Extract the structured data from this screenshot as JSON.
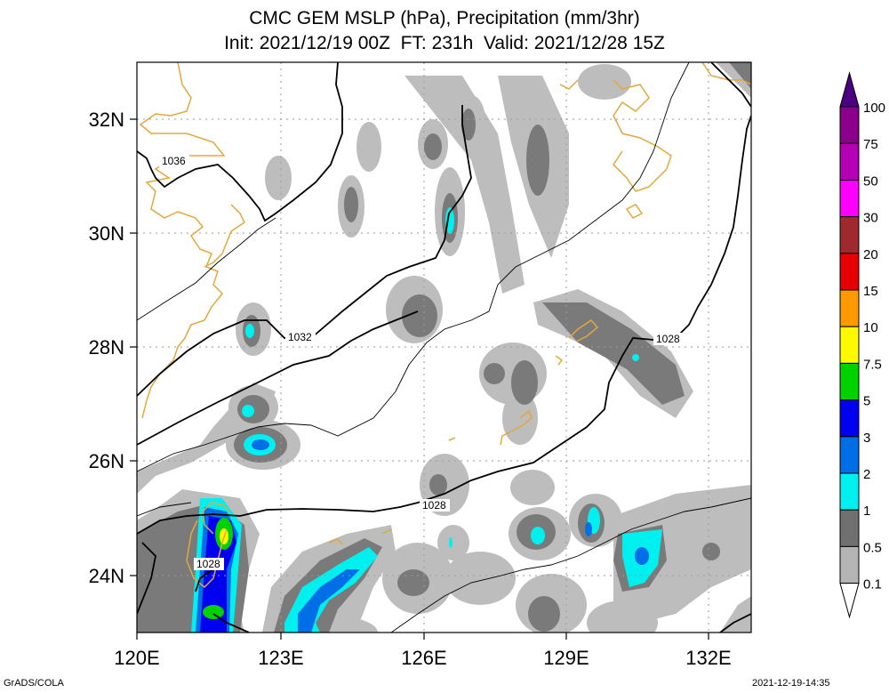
{
  "title": {
    "line1": "CMC GEM MSLP (hPa), Precipitation (mm/3hr)",
    "line2": "Init: 2021/12/19 00Z  FT: 231h  Valid: 2021/12/28 15Z"
  },
  "axes": {
    "lon_labels": [
      "120E",
      "123E",
      "126E",
      "129E",
      "132E"
    ],
    "lat_labels": [
      "32N",
      "30N",
      "28N",
      "26N",
      "24N"
    ]
  },
  "isobar_labels": [
    "1036",
    "1032",
    "1028",
    "1028",
    "1028"
  ],
  "colorbar": {
    "labels": [
      "100",
      "75",
      "50",
      "30",
      "20",
      "15",
      "10",
      "7.5",
      "5",
      "3",
      "2",
      "1",
      "0.5",
      "0.1"
    ],
    "colors": [
      "#8a008a",
      "#b400b4",
      "#ff00ff",
      "#a0292e",
      "#e60000",
      "#ff9900",
      "#fdfa00",
      "#00d200",
      "#0000f0",
      "#006ee6",
      "#00f0f0",
      "#707070",
      "#b4b4b4",
      "#ffffff"
    ]
  },
  "footer": {
    "left": "GrADS/COLA",
    "right": "2021-12-19-14:35"
  }
}
